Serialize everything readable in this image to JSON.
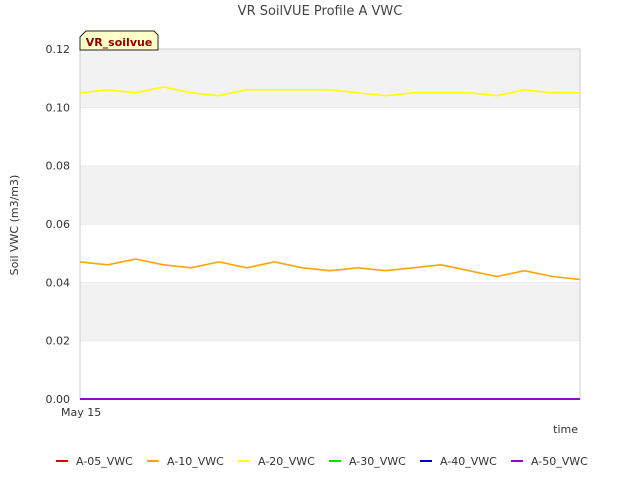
{
  "chart_data": {
    "type": "line",
    "title": "VR SoilVUE Profile A VWC",
    "xlabel": "time",
    "ylabel": "Soil VWC (m3/m3)",
    "ylim": [
      0,
      0.12
    ],
    "yticks": [
      "0.00",
      "0.02",
      "0.04",
      "0.06",
      "0.08",
      "0.10",
      "0.12"
    ],
    "x_tick_label": "May 15",
    "tag_label": "VR_soilvue",
    "grid": "horizontal alternating bands",
    "legend_position": "bottom",
    "x": [
      0,
      1,
      2,
      3,
      4,
      5,
      6,
      7,
      8,
      9,
      10,
      11,
      12,
      13,
      14,
      15,
      16,
      17,
      18
    ],
    "series": [
      {
        "name": "A-05_VWC",
        "color": "#dd0000",
        "values": [
          0,
          0,
          0,
          0,
          0,
          0,
          0,
          0,
          0,
          0,
          0,
          0,
          0,
          0,
          0,
          0,
          0,
          0,
          0
        ]
      },
      {
        "name": "A-10_VWC",
        "color": "#ffa500",
        "values": [
          0.047,
          0.046,
          0.048,
          0.046,
          0.045,
          0.047,
          0.045,
          0.047,
          0.045,
          0.044,
          0.045,
          0.044,
          0.045,
          0.046,
          0.044,
          0.042,
          0.044,
          0.042,
          0.041
        ]
      },
      {
        "name": "A-20_VWC",
        "color": "#ffff00",
        "values": [
          0.105,
          0.106,
          0.105,
          0.107,
          0.105,
          0.104,
          0.106,
          0.106,
          0.106,
          0.106,
          0.105,
          0.104,
          0.105,
          0.105,
          0.105,
          0.104,
          0.106,
          0.105,
          0.105
        ]
      },
      {
        "name": "A-30_VWC",
        "color": "#00dd00",
        "values": [
          0,
          0,
          0,
          0,
          0,
          0,
          0,
          0,
          0,
          0,
          0,
          0,
          0,
          0,
          0,
          0,
          0,
          0,
          0
        ]
      },
      {
        "name": "A-40_VWC",
        "color": "#0000cc",
        "values": [
          0,
          0,
          0,
          0,
          0,
          0,
          0,
          0,
          0,
          0,
          0,
          0,
          0,
          0,
          0,
          0,
          0,
          0,
          0
        ]
      },
      {
        "name": "A-50_VWC",
        "color": "#9900cc",
        "values": [
          0,
          0,
          0,
          0,
          0,
          0,
          0,
          0,
          0,
          0,
          0,
          0,
          0,
          0,
          0,
          0,
          0,
          0,
          0
        ]
      }
    ]
  }
}
